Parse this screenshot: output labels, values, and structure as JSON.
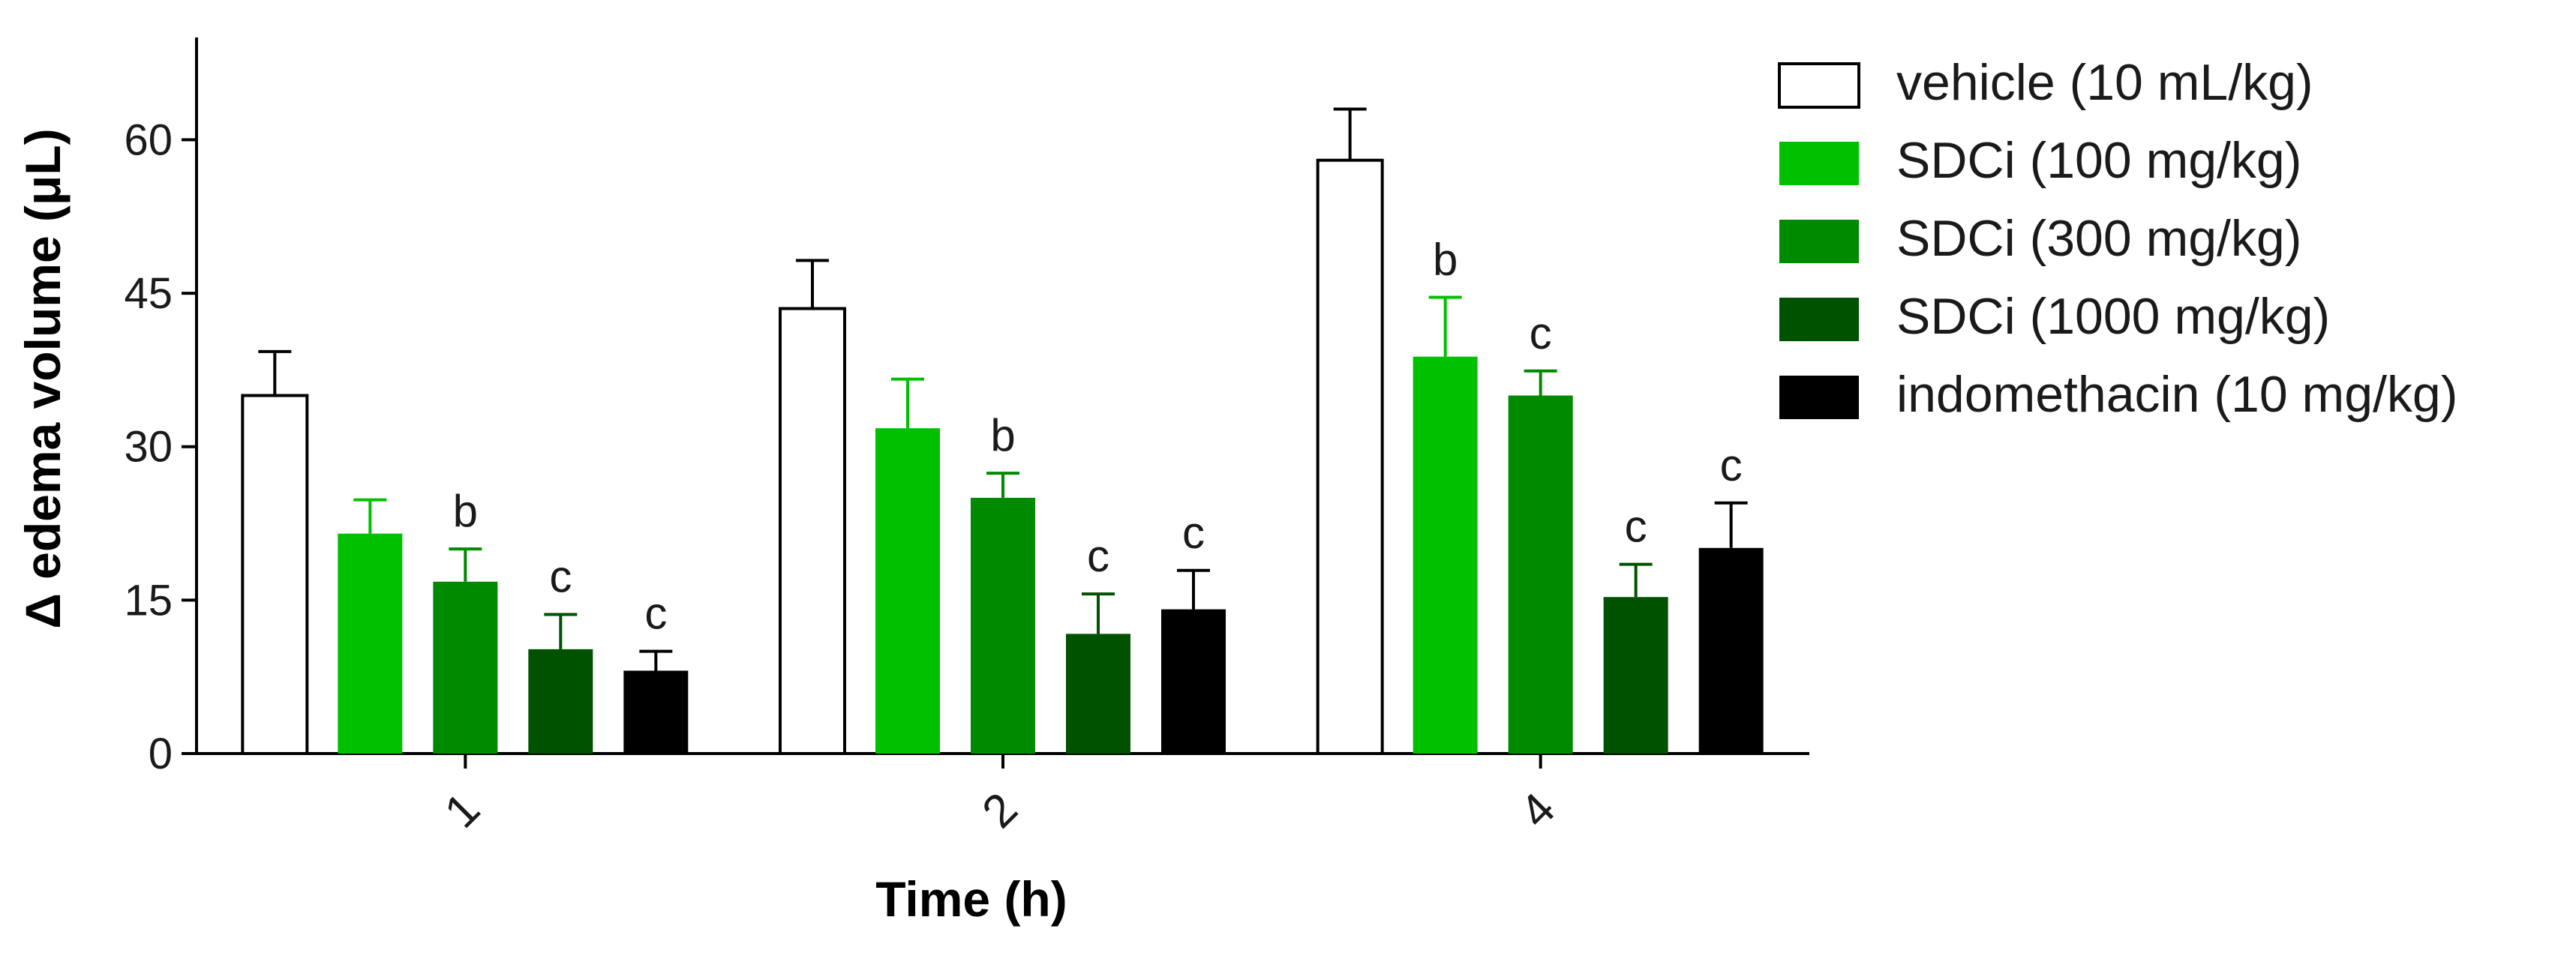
{
  "chart_data": {
    "type": "bar",
    "title": "",
    "xlabel": "Time (h)",
    "ylabel": "Δ edema volume (μL)",
    "ylim": [
      0,
      70
    ],
    "yticks": [
      0,
      15,
      30,
      45,
      60
    ],
    "categories": [
      "1",
      "2",
      "4"
    ],
    "grid": false,
    "legend_position": "top-right",
    "series": [
      {
        "name": "vehicle (10 mL/kg)",
        "color": "#ffffff",
        "values": [
          35,
          43.5,
          58
        ],
        "errors": [
          4.3,
          4.7,
          5
        ],
        "annotations": [
          "",
          "",
          ""
        ]
      },
      {
        "name": "SDCi (100 mg/kg)",
        "color": "#00c000",
        "values": [
          21.5,
          31.8,
          38.8
        ],
        "errors": [
          3.3,
          4.8,
          5.8
        ],
        "annotations": [
          "",
          "",
          "b"
        ]
      },
      {
        "name": "SDCi (300 mg/kg)",
        "color": "#008a00",
        "values": [
          16.8,
          25,
          35
        ],
        "errors": [
          3.2,
          2.4,
          2.4
        ],
        "annotations": [
          "b",
          "b",
          "c"
        ]
      },
      {
        "name": "SDCi (1000 mg/kg)",
        "color": "#005200",
        "values": [
          10.2,
          11.7,
          15.3
        ],
        "errors": [
          3.4,
          3.9,
          3.2
        ],
        "annotations": [
          "c",
          "c",
          "c"
        ]
      },
      {
        "name": "indomethacin (10 mg/kg)",
        "color": "#000000",
        "values": [
          8.1,
          14.1,
          20.1
        ],
        "errors": [
          1.9,
          3.8,
          4.4
        ],
        "annotations": [
          "c",
          "c",
          "c"
        ]
      }
    ]
  }
}
